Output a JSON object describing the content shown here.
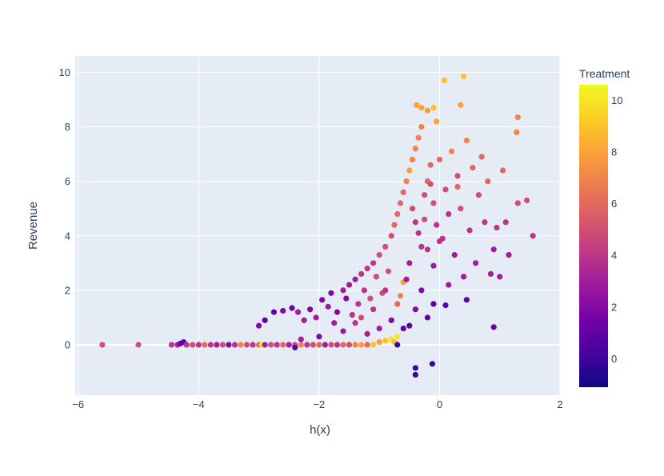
{
  "chart_data": {
    "type": "scatter",
    "title": "",
    "xlabel": "h(x)",
    "ylabel": "Revenue",
    "xlim": [
      -6.05,
      2.0
    ],
    "ylim": [
      -1.85,
      10.6
    ],
    "x_ticks": [
      -6,
      -4,
      -2,
      0,
      2
    ],
    "x_tick_labels": [
      "−6",
      "−4",
      "−2",
      "0",
      "2"
    ],
    "y_ticks": [
      0,
      2,
      4,
      6,
      8,
      10
    ],
    "y_tick_labels": [
      "0",
      "2",
      "4",
      "6",
      "8",
      "10"
    ],
    "grid": true,
    "legend": "none",
    "colorbar": {
      "title": "Treatment",
      "range": [
        -1.1,
        10.6
      ],
      "ticks": [
        0,
        2,
        4,
        6,
        8,
        10
      ],
      "tick_labels": [
        "0",
        "2",
        "4",
        "6",
        "8",
        "10"
      ],
      "colorscale": [
        "#0d0887",
        "#46039f",
        "#7201a8",
        "#9c179e",
        "#bd3786",
        "#d8576b",
        "#ed7953",
        "#fb9f3a",
        "#fdca26",
        "#f0f921"
      ]
    },
    "colors": {
      "plot_bg": "#e5ecf6",
      "grid": "#ffffff",
      "text": "#2a3f5f"
    },
    "points": [
      {
        "x": -5.6,
        "y": 0,
        "c": 5
      },
      {
        "x": -5.0,
        "y": 0,
        "c": 5
      },
      {
        "x": -4.45,
        "y": 0,
        "c": 4
      },
      {
        "x": -4.35,
        "y": 0,
        "c": 3
      },
      {
        "x": -4.3,
        "y": 0.05,
        "c": 1
      },
      {
        "x": -4.25,
        "y": 0.1,
        "c": 1
      },
      {
        "x": -4.2,
        "y": 0,
        "c": 4
      },
      {
        "x": -4.1,
        "y": 0,
        "c": 5
      },
      {
        "x": -4.0,
        "y": 0,
        "c": 4
      },
      {
        "x": -3.9,
        "y": 0,
        "c": 6
      },
      {
        "x": -3.8,
        "y": 0,
        "c": 4
      },
      {
        "x": -3.7,
        "y": 0,
        "c": 3
      },
      {
        "x": -3.6,
        "y": 0,
        "c": 5
      },
      {
        "x": -3.5,
        "y": 0,
        "c": 2
      },
      {
        "x": -3.4,
        "y": 0,
        "c": 4
      },
      {
        "x": -3.3,
        "y": 0,
        "c": 7
      },
      {
        "x": -3.2,
        "y": 0,
        "c": 5
      },
      {
        "x": -3.1,
        "y": 0,
        "c": 4
      },
      {
        "x": -3.0,
        "y": 0,
        "c": 6
      },
      {
        "x": -2.95,
        "y": 0,
        "c": 10
      },
      {
        "x": -2.9,
        "y": 0,
        "c": 3
      },
      {
        "x": -2.8,
        "y": 0,
        "c": 5
      },
      {
        "x": -2.7,
        "y": 0,
        "c": 4
      },
      {
        "x": -2.6,
        "y": 0,
        "c": 6
      },
      {
        "x": -2.5,
        "y": 0,
        "c": 3
      },
      {
        "x": -2.4,
        "y": 0,
        "c": 5
      },
      {
        "x": -2.3,
        "y": 0,
        "c": 7
      },
      {
        "x": -2.2,
        "y": 0,
        "c": 4
      },
      {
        "x": -2.1,
        "y": 0,
        "c": 5
      },
      {
        "x": -2.0,
        "y": 0,
        "c": 6
      },
      {
        "x": -1.9,
        "y": 0,
        "c": 3
      },
      {
        "x": -1.8,
        "y": 0,
        "c": 5
      },
      {
        "x": -1.7,
        "y": 0,
        "c": 4
      },
      {
        "x": -1.6,
        "y": 0,
        "c": 6
      },
      {
        "x": -1.5,
        "y": 0,
        "c": 5
      },
      {
        "x": -1.4,
        "y": 0,
        "c": 7
      },
      {
        "x": -1.3,
        "y": 0,
        "c": 8
      },
      {
        "x": -1.2,
        "y": 0,
        "c": 6
      },
      {
        "x": -1.1,
        "y": 0,
        "c": 9
      },
      {
        "x": -1.0,
        "y": 0.1,
        "c": 8
      },
      {
        "x": -0.9,
        "y": 0.15,
        "c": 9
      },
      {
        "x": -0.8,
        "y": 0.2,
        "c": 10
      },
      {
        "x": -0.7,
        "y": 0.3,
        "c": 10
      },
      {
        "x": -0.75,
        "y": 0.1,
        "c": 9
      },
      {
        "x": -2.4,
        "y": -0.1,
        "c": 1
      },
      {
        "x": -2.3,
        "y": 0.2,
        "c": 3
      },
      {
        "x": -2.0,
        "y": 0.3,
        "c": 2
      },
      {
        "x": -3.0,
        "y": 0.7,
        "c": 2
      },
      {
        "x": -2.9,
        "y": 0.9,
        "c": 1
      },
      {
        "x": -2.75,
        "y": 1.2,
        "c": 1
      },
      {
        "x": -2.6,
        "y": 1.25,
        "c": 2
      },
      {
        "x": -2.45,
        "y": 1.35,
        "c": 1
      },
      {
        "x": -2.35,
        "y": 1.2,
        "c": 3
      },
      {
        "x": -2.25,
        "y": 0.9,
        "c": 3
      },
      {
        "x": -2.15,
        "y": 1.3,
        "c": 2
      },
      {
        "x": -2.05,
        "y": 1.0,
        "c": 3
      },
      {
        "x": -1.95,
        "y": 1.65,
        "c": 2
      },
      {
        "x": -1.85,
        "y": 1.4,
        "c": 3
      },
      {
        "x": -1.8,
        "y": 1.9,
        "c": 2
      },
      {
        "x": -1.75,
        "y": 0.8,
        "c": 3
      },
      {
        "x": -1.7,
        "y": 1.2,
        "c": 2
      },
      {
        "x": -1.6,
        "y": 2.0,
        "c": 3
      },
      {
        "x": -1.55,
        "y": 1.7,
        "c": 2
      },
      {
        "x": -1.5,
        "y": 2.2,
        "c": 3
      },
      {
        "x": -1.45,
        "y": 1.1,
        "c": 4
      },
      {
        "x": -1.4,
        "y": 2.4,
        "c": 3
      },
      {
        "x": -1.35,
        "y": 1.5,
        "c": 4
      },
      {
        "x": -1.3,
        "y": 2.6,
        "c": 4
      },
      {
        "x": -1.25,
        "y": 2.0,
        "c": 4
      },
      {
        "x": -1.2,
        "y": 2.8,
        "c": 4
      },
      {
        "x": -1.15,
        "y": 1.7,
        "c": 5
      },
      {
        "x": -1.1,
        "y": 3.0,
        "c": 4
      },
      {
        "x": -1.05,
        "y": 2.5,
        "c": 5
      },
      {
        "x": -1.0,
        "y": 3.3,
        "c": 5
      },
      {
        "x": -0.95,
        "y": 1.9,
        "c": 5
      },
      {
        "x": -0.9,
        "y": 3.6,
        "c": 5
      },
      {
        "x": -0.85,
        "y": 2.7,
        "c": 5
      },
      {
        "x": -0.8,
        "y": 4.0,
        "c": 5
      },
      {
        "x": -0.75,
        "y": 4.4,
        "c": 6
      },
      {
        "x": -0.7,
        "y": 4.8,
        "c": 6
      },
      {
        "x": -0.65,
        "y": 5.2,
        "c": 6
      },
      {
        "x": -0.6,
        "y": 5.6,
        "c": 6
      },
      {
        "x": -0.55,
        "y": 6.0,
        "c": 7
      },
      {
        "x": -0.5,
        "y": 6.4,
        "c": 8
      },
      {
        "x": -0.45,
        "y": 6.8,
        "c": 7
      },
      {
        "x": -0.4,
        "y": 7.2,
        "c": 7
      },
      {
        "x": -0.35,
        "y": 7.6,
        "c": 7
      },
      {
        "x": -0.3,
        "y": 8.0,
        "c": 7
      },
      {
        "x": -0.38,
        "y": 8.8,
        "c": 8
      },
      {
        "x": -0.3,
        "y": 8.7,
        "c": 8
      },
      {
        "x": -0.2,
        "y": 8.6,
        "c": 8
      },
      {
        "x": -0.1,
        "y": 8.7,
        "c": 9
      },
      {
        "x": -0.05,
        "y": 8.2,
        "c": 8
      },
      {
        "x": 0.08,
        "y": 9.7,
        "c": 9
      },
      {
        "x": 0.4,
        "y": 9.85,
        "c": 9
      },
      {
        "x": 0.35,
        "y": 8.8,
        "c": 8
      },
      {
        "x": -0.45,
        "y": 5.0,
        "c": 5
      },
      {
        "x": -0.4,
        "y": 4.5,
        "c": 4
      },
      {
        "x": -0.35,
        "y": 4.1,
        "c": 4
      },
      {
        "x": -0.3,
        "y": 3.6,
        "c": 4
      },
      {
        "x": -0.25,
        "y": 5.5,
        "c": 5
      },
      {
        "x": -0.2,
        "y": 6.0,
        "c": 6
      },
      {
        "x": -0.15,
        "y": 6.6,
        "c": 6
      },
      {
        "x": -0.1,
        "y": 5.2,
        "c": 5
      },
      {
        "x": -0.05,
        "y": 4.4,
        "c": 4
      },
      {
        "x": 0.0,
        "y": 6.8,
        "c": 6
      },
      {
        "x": 0.05,
        "y": 3.9,
        "c": 4
      },
      {
        "x": 0.1,
        "y": 5.7,
        "c": 5
      },
      {
        "x": 0.15,
        "y": 4.8,
        "c": 4
      },
      {
        "x": 0.2,
        "y": 7.1,
        "c": 7
      },
      {
        "x": 0.25,
        "y": 3.3,
        "c": 3
      },
      {
        "x": 0.3,
        "y": 6.2,
        "c": 5
      },
      {
        "x": 0.35,
        "y": 5.0,
        "c": 5
      },
      {
        "x": 0.4,
        "y": 2.5,
        "c": 3
      },
      {
        "x": 0.45,
        "y": 7.5,
        "c": 7
      },
      {
        "x": 0.5,
        "y": 4.2,
        "c": 4
      },
      {
        "x": 0.55,
        "y": 6.5,
        "c": 6
      },
      {
        "x": 0.6,
        "y": 3.0,
        "c": 3
      },
      {
        "x": 0.65,
        "y": 5.5,
        "c": 5
      },
      {
        "x": 0.7,
        "y": 6.9,
        "c": 6
      },
      {
        "x": 0.75,
        "y": 4.5,
        "c": 4
      },
      {
        "x": 0.8,
        "y": 6.0,
        "c": 6
      },
      {
        "x": 0.85,
        "y": 2.6,
        "c": 3
      },
      {
        "x": 0.9,
        "y": 3.5,
        "c": 3
      },
      {
        "x": 0.95,
        "y": 4.3,
        "c": 4
      },
      {
        "x": 1.0,
        "y": 2.5,
        "c": 3
      },
      {
        "x": 1.05,
        "y": 6.4,
        "c": 6
      },
      {
        "x": 1.1,
        "y": 4.5,
        "c": 4
      },
      {
        "x": 1.15,
        "y": 3.3,
        "c": 3
      },
      {
        "x": 1.3,
        "y": 8.35,
        "c": 7
      },
      {
        "x": 1.28,
        "y": 7.8,
        "c": 7
      },
      {
        "x": 1.3,
        "y": 5.2,
        "c": 5
      },
      {
        "x": 1.45,
        "y": 5.3,
        "c": 5
      },
      {
        "x": 1.55,
        "y": 4.0,
        "c": 4
      },
      {
        "x": 0.9,
        "y": 0.65,
        "c": 1
      },
      {
        "x": 0.45,
        "y": 1.65,
        "c": 1
      },
      {
        "x": 0.1,
        "y": 1.45,
        "c": 1
      },
      {
        "x": -0.1,
        "y": 1.5,
        "c": 1
      },
      {
        "x": -0.2,
        "y": 1.0,
        "c": 1
      },
      {
        "x": -0.3,
        "y": 2.0,
        "c": 2
      },
      {
        "x": -0.4,
        "y": 1.3,
        "c": 2
      },
      {
        "x": -0.5,
        "y": 0.7,
        "c": 1
      },
      {
        "x": -0.6,
        "y": 0.6,
        "c": 1
      },
      {
        "x": -0.7,
        "y": 0.0,
        "c": 0
      },
      {
        "x": -0.4,
        "y": -0.85,
        "c": 0
      },
      {
        "x": -0.4,
        "y": -1.1,
        "c": 0
      },
      {
        "x": -0.12,
        "y": -0.7,
        "c": 0
      },
      {
        "x": -0.8,
        "y": 0.9,
        "c": 2
      },
      {
        "x": -1.0,
        "y": 0.6,
        "c": 3
      },
      {
        "x": -1.2,
        "y": 0.4,
        "c": 3
      },
      {
        "x": -1.4,
        "y": 0.8,
        "c": 4
      },
      {
        "x": -1.6,
        "y": 0.5,
        "c": 3
      },
      {
        "x": -0.65,
        "y": 1.8,
        "c": 7
      },
      {
        "x": -0.6,
        "y": 2.3,
        "c": 8
      },
      {
        "x": -0.7,
        "y": 1.5,
        "c": 6
      },
      {
        "x": -0.9,
        "y": 2.0,
        "c": 4
      },
      {
        "x": -1.1,
        "y": 1.3,
        "c": 4
      },
      {
        "x": -1.3,
        "y": 1.0,
        "c": 5
      },
      {
        "x": -0.5,
        "y": 3.0,
        "c": 3
      },
      {
        "x": -0.55,
        "y": 2.4,
        "c": 3
      },
      {
        "x": -0.2,
        "y": 3.5,
        "c": 4
      },
      {
        "x": -0.1,
        "y": 2.9,
        "c": 3
      },
      {
        "x": 0.0,
        "y": 3.8,
        "c": 4
      },
      {
        "x": 0.15,
        "y": 2.2,
        "c": 3
      },
      {
        "x": -0.25,
        "y": 4.6,
        "c": 5
      },
      {
        "x": -0.15,
        "y": 5.9,
        "c": 5
      },
      {
        "x": 0.3,
        "y": 5.8,
        "c": 6
      }
    ]
  }
}
